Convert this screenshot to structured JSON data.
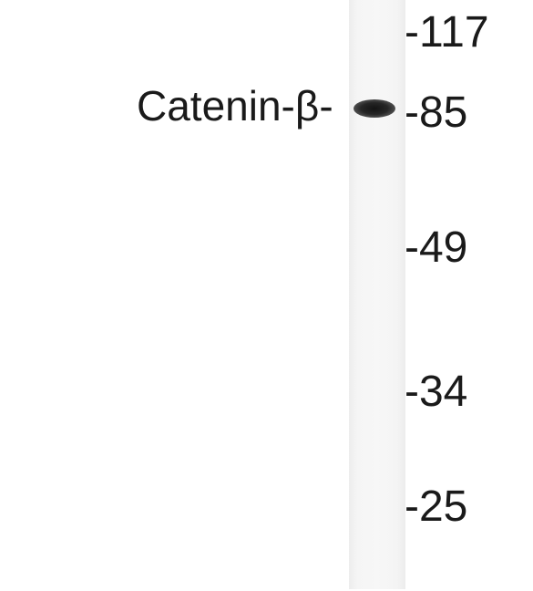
{
  "blot": {
    "protein_label": "Catenin-β-",
    "band_color": "#1a1a1a",
    "lane_color": "#f5f5f5",
    "markers": [
      {
        "label": "-117"
      },
      {
        "label": "-85"
      },
      {
        "label": "-49"
      },
      {
        "label": "-34"
      },
      {
        "label": "-25"
      }
    ]
  }
}
